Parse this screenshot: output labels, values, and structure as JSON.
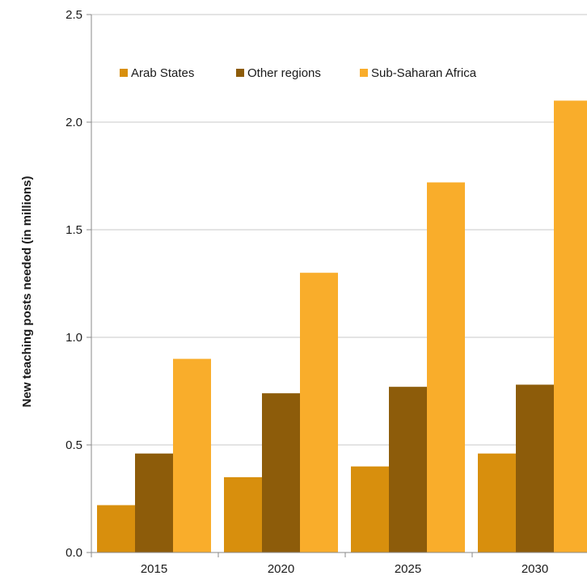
{
  "chart_data": {
    "type": "bar",
    "title": "",
    "xlabel": "",
    "ylabel": "New teaching posts needed (in millions)",
    "ylim": [
      0,
      2.5
    ],
    "yticks": [
      "0.0",
      "0.5",
      "1.0",
      "1.5",
      "2.0",
      "2.5"
    ],
    "categories": [
      "2015",
      "2020",
      "2025",
      "2030"
    ],
    "grid": true,
    "legend_position": "top",
    "series": [
      {
        "name": "Arab States",
        "color": "#D88F0D",
        "values": [
          0.22,
          0.35,
          0.4,
          0.46
        ]
      },
      {
        "name": "Other regions",
        "color": "#8D5C0A",
        "values": [
          0.46,
          0.74,
          0.77,
          0.78
        ]
      },
      {
        "name": "Sub-Saharan Africa",
        "color": "#F9AD2B",
        "values": [
          0.9,
          1.3,
          1.72,
          2.1
        ]
      }
    ]
  }
}
